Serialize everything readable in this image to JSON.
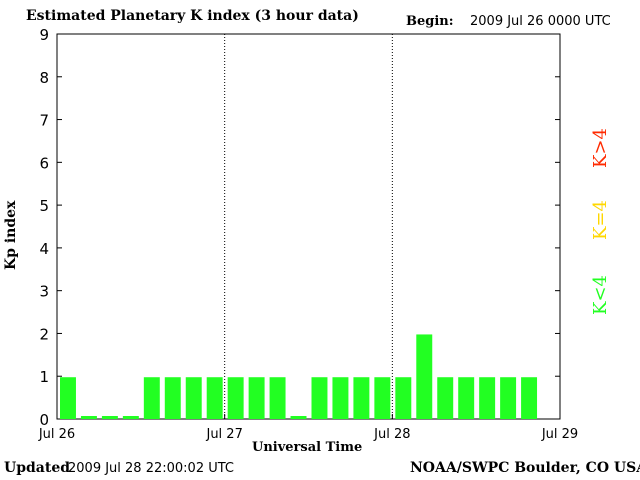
{
  "header": {
    "title": "Estimated Planetary K index (3 hour data)",
    "begin_label": "Begin:",
    "begin_value": "2009 Jul 26 0000 UTC"
  },
  "footer": {
    "updated_label": "Updated",
    "updated_value": "2009 Jul 28 22:00:02 UTC",
    "credit": "NOAA/SWPC Boulder, CO USA"
  },
  "legend": [
    {
      "label": "K<4",
      "color": "#22ff22"
    },
    {
      "label": "K=4",
      "color": "#ffd700"
    },
    {
      "label": "K>4",
      "color": "#ff2a00"
    }
  ],
  "chart_data": {
    "type": "bar",
    "title": "Estimated Planetary K index (3 hour data)",
    "xlabel": "Universal Time",
    "ylabel": "Kp index",
    "ylim": [
      0,
      9
    ],
    "yticks": [
      "0",
      "1",
      "2",
      "3",
      "4",
      "5",
      "6",
      "7",
      "8",
      "9"
    ],
    "xticks": [
      "Jul 26",
      "Jul 27",
      "Jul 28",
      "Jul 29"
    ],
    "interval_hours": 3,
    "day_separators": "dotted vertical lines at day boundaries",
    "values": [
      1,
      0,
      0,
      0,
      1,
      1,
      1,
      1,
      1,
      1,
      1,
      0,
      1,
      1,
      1,
      1,
      1,
      2,
      1,
      1,
      1,
      1,
      1
    ],
    "bar_color": "#22ff22"
  }
}
